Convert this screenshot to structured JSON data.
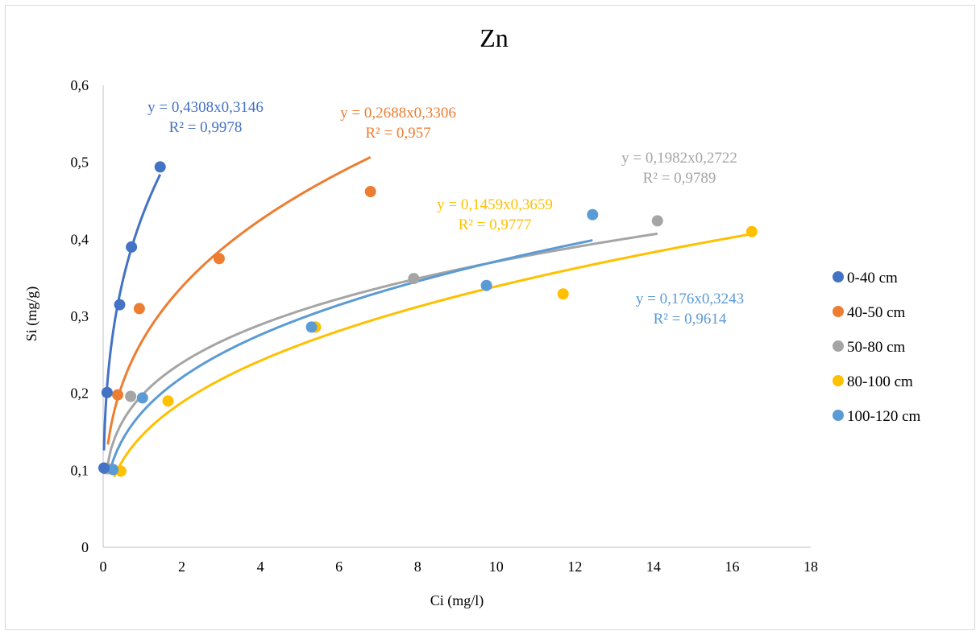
{
  "chart_data": {
    "type": "scatter",
    "title": "Zn",
    "xlabel": "Ci (mg/l)",
    "ylabel": "Si (mg/g)",
    "xlim": [
      0,
      18
    ],
    "ylim": [
      0,
      0.6
    ],
    "x_ticks": [
      "0",
      "2",
      "4",
      "6",
      "8",
      "10",
      "12",
      "14",
      "16",
      "18"
    ],
    "y_ticks": [
      "0",
      "0,1",
      "0,2",
      "0,3",
      "0,4",
      "0,5",
      "0,6"
    ],
    "grid": false,
    "legend_position": "right",
    "series": [
      {
        "name": "0-40 cm",
        "color": "#4472C4",
        "points": [
          [
            0.02,
            0.103
          ],
          [
            0.1,
            0.201
          ],
          [
            0.42,
            0.315
          ],
          [
            0.72,
            0.39
          ],
          [
            1.45,
            0.494
          ]
        ],
        "trendline": {
          "a": 0.4308,
          "b": 0.3146,
          "x_range": [
            0.02,
            1.45
          ]
        },
        "equation": "y = 0,4308x0,3146",
        "r2": "R² = 0,9978"
      },
      {
        "name": "40-50 cm",
        "color": "#ED7D31",
        "points": [
          [
            0.05,
            0.102
          ],
          [
            0.37,
            0.198
          ],
          [
            0.92,
            0.31
          ],
          [
            2.95,
            0.375
          ],
          [
            6.8,
            0.462
          ]
        ],
        "trendline": {
          "a": 0.2688,
          "b": 0.3306,
          "x_range": [
            0.12,
            6.8
          ]
        },
        "equation": "y = 0,2688x0,3306",
        "r2": "R² = 0,957"
      },
      {
        "name": "50-80 cm",
        "color": "#A5A5A5",
        "points": [
          [
            0.12,
            0.102
          ],
          [
            0.7,
            0.196
          ],
          [
            5.4,
            0.286
          ],
          [
            7.9,
            0.349
          ],
          [
            14.1,
            0.424
          ]
        ],
        "trendline": {
          "a": 0.1982,
          "b": 0.2722,
          "x_range": [
            0.08,
            14.1
          ]
        },
        "equation": "y = 0,1982x0,2722",
        "r2": "R² = 0,9789"
      },
      {
        "name": "80-100 cm",
        "color": "#FFC000",
        "points": [
          [
            0.45,
            0.099
          ],
          [
            1.65,
            0.19
          ],
          [
            5.4,
            0.286
          ],
          [
            11.7,
            0.329
          ],
          [
            16.5,
            0.41
          ]
        ],
        "trendline": {
          "a": 0.1459,
          "b": 0.3659,
          "x_range": [
            0.28,
            16.5
          ]
        },
        "equation": "y = 0,1459x0,3659",
        "r2": "R² = 0,9777"
      },
      {
        "name": "100-120 cm",
        "color": "#5B9BD5",
        "points": [
          [
            0.25,
            0.101
          ],
          [
            1.0,
            0.194
          ],
          [
            5.3,
            0.286
          ],
          [
            9.75,
            0.34
          ],
          [
            12.45,
            0.432
          ]
        ],
        "trendline": {
          "a": 0.176,
          "b": 0.3243,
          "x_range": [
            0.15,
            12.45
          ]
        },
        "equation": "y = 0,176x0,3243",
        "r2": "R² = 0,9614"
      }
    ]
  }
}
